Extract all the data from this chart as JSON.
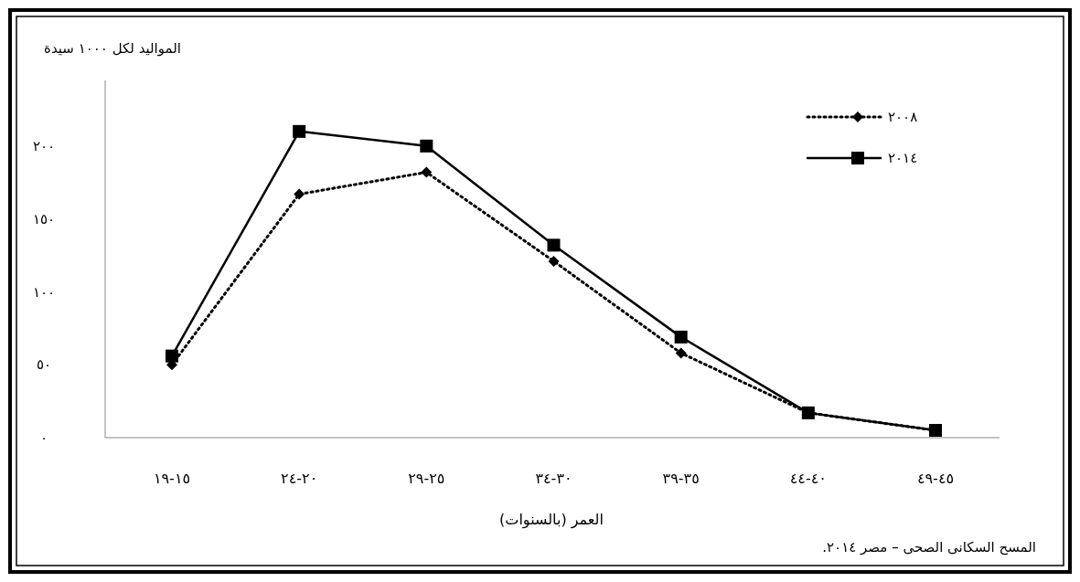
{
  "chart_data": {
    "type": "line",
    "ylabel": "المواليد لكل ١٠٠٠ سيدة",
    "xlabel": "العمر (بالسنوات)",
    "categories": [
      "١٥-١٩",
      "٢٠-٢٤",
      "٢٥-٢٩",
      "٣٠-٣٤",
      "٣٥-٣٩",
      "٤٠-٤٤",
      "٤٥-٤٩"
    ],
    "series": [
      {
        "name": "٢٠٠٨",
        "color": "#000000",
        "marker": "diamond",
        "line_style": "dotted",
        "values": [
          50,
          167,
          182,
          121,
          58,
          17,
          5
        ]
      },
      {
        "name": "٢٠١٤",
        "color": "#000000",
        "marker": "square",
        "line_style": "solid",
        "values": [
          56,
          210,
          200,
          132,
          69,
          17,
          5
        ]
      }
    ],
    "ylim": [
      0,
      245
    ],
    "yticks": [
      {
        "value": 0,
        "label": "٠"
      },
      {
        "value": 50,
        "label": "٥٠"
      },
      {
        "value": 100,
        "label": "١٠٠"
      },
      {
        "value": 150,
        "label": "١٥٠"
      },
      {
        "value": 200,
        "label": "٢٠٠"
      }
    ],
    "legend": "top right",
    "grid": false,
    "annotations": [
      "المسح السكانى الصحى – مصر ٢٠١٤."
    ]
  }
}
